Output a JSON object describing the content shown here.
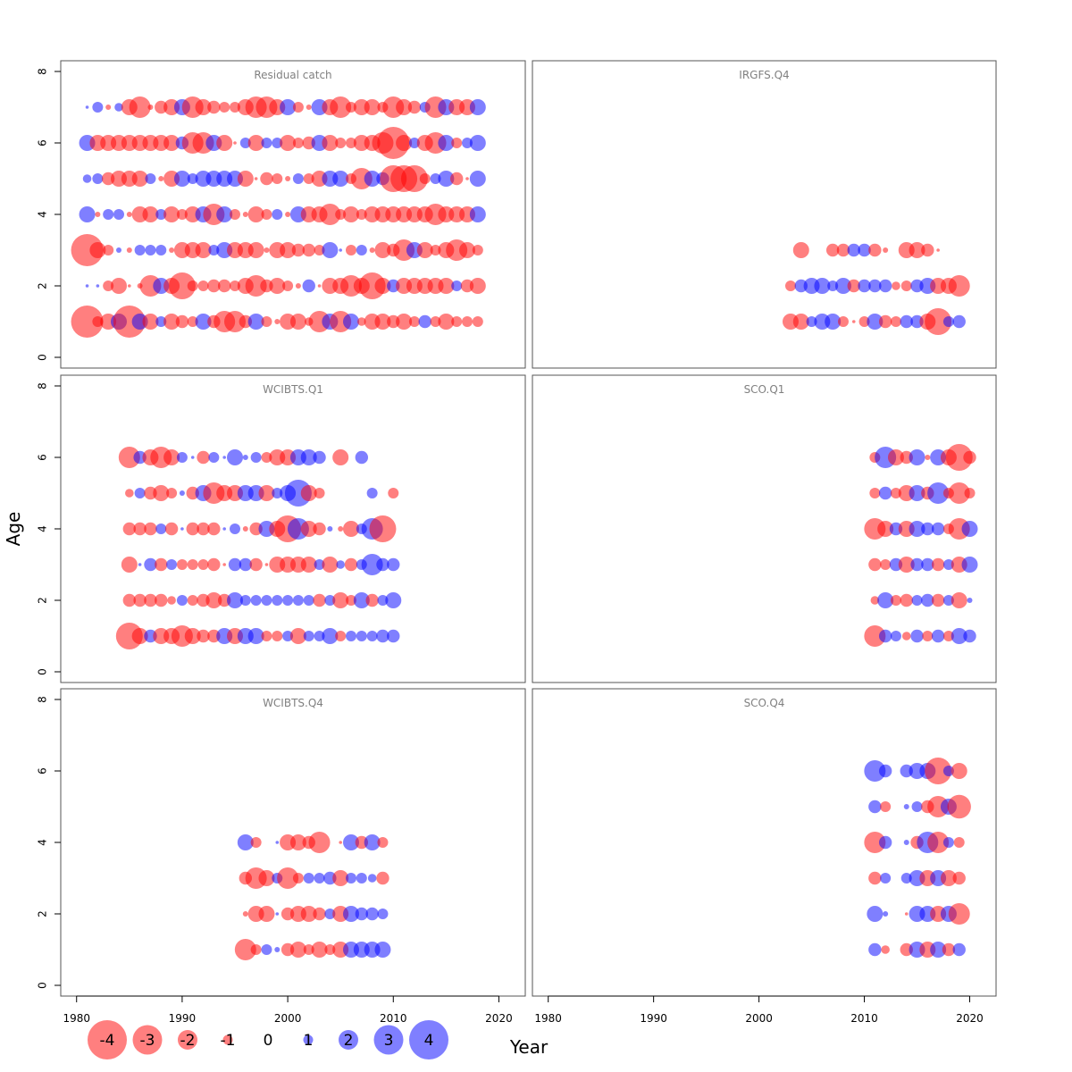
{
  "chart_data": {
    "type": "scatter",
    "subtype": "bubble-residual-panels",
    "ylabel": "Age",
    "xlabel": "Year",
    "xlim": [
      1978.5,
      2022.5
    ],
    "ylim": [
      -0.3,
      8.3
    ],
    "x_ticks": [
      1980,
      1990,
      2000,
      2010,
      2020
    ],
    "y_ticks": [
      0,
      2,
      4,
      6,
      8
    ],
    "colors": {
      "negative": "#ff0000",
      "positive": "#0000ff",
      "opacity": 0.5
    },
    "size_legend": {
      "values": [
        -4,
        -3,
        -2,
        -1,
        0,
        1,
        2,
        3,
        4
      ],
      "labels": [
        "-4",
        "-3",
        "-2",
        "-1",
        "0",
        "1",
        "2",
        "3",
        "4"
      ]
    },
    "panels": [
      {
        "title": "Residual catch",
        "years": [
          1981,
          1982,
          1983,
          1984,
          1985,
          1986,
          1987,
          1988,
          1989,
          1990,
          1991,
          1992,
          1993,
          1994,
          1995,
          1996,
          1997,
          1998,
          1999,
          2000,
          2001,
          2002,
          2003,
          2004,
          2005,
          2006,
          2007,
          2008,
          2009,
          2010,
          2011,
          2012,
          2013,
          2014,
          2015,
          2016,
          2017,
          2018
        ],
        "ages": [
          1,
          2,
          3,
          4,
          5,
          6,
          7
        ],
        "residuals": [
          [
            -3.0,
            -1.0,
            -1.5,
            1.5,
            -3.0,
            1.5,
            -1.5,
            1.0,
            -1.5,
            -1.2,
            -1.0,
            1.5,
            -1.2,
            -2.0,
            -2.0,
            -1.2,
            1.5,
            -1.0,
            -0.5,
            -1.5,
            -1.5,
            -0.8,
            -2.0,
            1.5,
            -2.0,
            1.5,
            -0.8,
            -1.5,
            -1.5,
            -1.2,
            -1.5,
            -1.0,
            1.2,
            -1.0,
            -1.5,
            -1.0,
            -1.0,
            -1.0
          ],
          [
            0.3,
            0.3,
            -1.0,
            -1.5,
            -0.3,
            -0.5,
            -2.0,
            1.5,
            -1.5,
            -2.5,
            -1.0,
            -1.0,
            -1.2,
            -1.2,
            -1.0,
            -1.5,
            -2.0,
            -1.2,
            -1.5,
            -1.0,
            -0.5,
            1.2,
            -0.3,
            -1.5,
            -1.5,
            -2.0,
            -1.5,
            -2.5,
            -1.5,
            1.2,
            -1.5,
            -1.5,
            -1.5,
            -1.5,
            -1.5,
            1.0,
            -1.2,
            -1.5
          ],
          [
            -3.0,
            -1.5,
            -1.0,
            0.5,
            -0.5,
            1.0,
            1.0,
            1.0,
            -0.5,
            -1.5,
            -1.5,
            -1.5,
            1.0,
            1.5,
            -1.5,
            -1.5,
            -1.5,
            -0.5,
            -1.5,
            -1.5,
            -1.2,
            -1.2,
            -1.0,
            1.5,
            0.3,
            -1.0,
            1.0,
            -0.5,
            -1.5,
            -1.2,
            -2.0,
            1.5,
            -1.5,
            -1.0,
            -1.5,
            -2.0,
            -1.5,
            -1.0
          ],
          [
            1.5,
            -0.5,
            1.0,
            1.0,
            -0.5,
            -1.5,
            -1.5,
            1.0,
            -1.5,
            -1.0,
            -1.5,
            1.5,
            -2.0,
            1.5,
            -1.0,
            -0.5,
            -1.5,
            -1.0,
            1.0,
            -0.5,
            1.5,
            -1.5,
            -1.5,
            -2.0,
            -1.0,
            -1.5,
            -1.0,
            -1.5,
            -1.5,
            -1.5,
            -1.5,
            -1.5,
            -1.5,
            -2.0,
            -1.5,
            -1.5,
            -1.5,
            1.5
          ],
          [
            0.8,
            1.0,
            -1.2,
            -1.5,
            -1.5,
            -1.5,
            1.0,
            -0.5,
            -1.5,
            1.5,
            1.0,
            1.5,
            1.5,
            1.5,
            1.5,
            -1.5,
            -0.3,
            -1.2,
            -1.0,
            -0.5,
            1.0,
            -1.0,
            -1.5,
            1.5,
            1.5,
            -1.0,
            -2.0,
            1.5,
            1.2,
            -2.5,
            -2.5,
            -2.5,
            -1.0,
            1.0,
            1.5,
            -1.2,
            -0.3,
            1.5
          ],
          [
            1.5,
            -1.5,
            -1.5,
            -1.5,
            -1.5,
            -1.5,
            -1.5,
            -1.5,
            -1.5,
            1.2,
            -2.0,
            -2.0,
            1.5,
            -1.5,
            -0.3,
            1.0,
            -1.5,
            1.0,
            1.0,
            -1.5,
            -1.0,
            -1.2,
            1.5,
            -1.5,
            -1.0,
            -1.0,
            -1.5,
            -1.5,
            -2.0,
            -3.0,
            -1.5,
            1.0,
            -1.5,
            -2.0,
            1.5,
            -1.0,
            1.0,
            1.5
          ],
          [
            0.3,
            1.0,
            -0.5,
            0.8,
            -1.5,
            -2.0,
            -0.5,
            -1.2,
            -1.5,
            1.5,
            -2.0,
            -1.5,
            -1.2,
            -1.0,
            -1.0,
            -1.5,
            -2.0,
            -2.0,
            -1.5,
            1.5,
            -1.0,
            -0.5,
            1.5,
            -1.5,
            -2.0,
            -1.0,
            -1.5,
            -1.5,
            -1.0,
            -2.0,
            -1.5,
            -1.2,
            1.0,
            -2.0,
            1.5,
            -1.5,
            -1.5,
            1.5
          ]
        ]
      },
      {
        "title": "IRGFS.Q4",
        "years": [
          2003,
          2004,
          2005,
          2006,
          2007,
          2008,
          2009,
          2010,
          2011,
          2012,
          2013,
          2014,
          2015,
          2016,
          2017,
          2018,
          2019
        ],
        "ages": [
          1,
          2,
          3
        ],
        "residuals": [
          [
            -1.5,
            -1.5,
            1.0,
            1.5,
            1.5,
            -1.0,
            -0.3,
            -1.0,
            1.5,
            -1.2,
            -1.0,
            1.2,
            1.2,
            -1.5,
            -2.5,
            1.0,
            1.2
          ],
          [
            -1.0,
            1.2,
            1.5,
            1.5,
            1.0,
            1.5,
            -1.2,
            1.2,
            1.2,
            1.2,
            -0.8,
            -1.0,
            1.2,
            1.5,
            -1.5,
            -1.5,
            -2.0
          ],
          [
            null,
            -1.5,
            null,
            null,
            -1.2,
            -1.2,
            1.2,
            1.2,
            -1.2,
            -0.5,
            null,
            -1.5,
            -1.5,
            -1.2,
            -0.3,
            null,
            null
          ]
        ]
      },
      {
        "title": "WCIBTS.Q1",
        "years": [
          1985,
          1986,
          1987,
          1988,
          1989,
          1990,
          1991,
          1992,
          1993,
          1994,
          1995,
          1996,
          1997,
          1998,
          1999,
          2000,
          2001,
          2002,
          2003,
          2004,
          2005,
          2006,
          2007,
          2008,
          2009,
          2010
        ],
        "ages": [
          1,
          2,
          3,
          4,
          5,
          6
        ],
        "residuals": [
          [
            -2.5,
            -1.5,
            1.2,
            -1.5,
            -1.5,
            -2.0,
            -1.5,
            -1.2,
            -1.2,
            1.5,
            -1.5,
            1.5,
            1.5,
            -1.0,
            -1.0,
            1.0,
            -1.5,
            1.0,
            1.0,
            1.5,
            -1.0,
            1.0,
            1.0,
            1.0,
            1.2,
            1.2
          ],
          [
            -1.2,
            -1.2,
            -1.2,
            -1.2,
            -0.8,
            1.0,
            -1.0,
            -1.2,
            -1.5,
            -1.2,
            1.5,
            1.0,
            1.0,
            1.0,
            1.0,
            1.0,
            1.0,
            1.0,
            -1.2,
            1.0,
            -1.5,
            -1.0,
            1.5,
            -1.2,
            1.0,
            1.5
          ],
          [
            -1.5,
            0.3,
            1.2,
            -1.2,
            1.0,
            -1.0,
            -1.0,
            -1.0,
            -1.2,
            -0.3,
            1.2,
            1.2,
            -1.2,
            -0.3,
            -1.5,
            -1.5,
            -1.5,
            -1.5,
            1.0,
            -1.5,
            0.8,
            -1.2,
            1.0,
            2.0,
            1.2,
            1.2
          ],
          [
            -1.2,
            -1.2,
            -1.2,
            1.0,
            -1.2,
            0.3,
            -1.2,
            -1.2,
            -1.2,
            0.3,
            1.0,
            -0.5,
            -1.2,
            1.5,
            -1.5,
            -2.5,
            2.0,
            -1.5,
            -1.2,
            0.5,
            -0.5,
            -1.5,
            1.0,
            2.0,
            -2.5,
            null
          ],
          [
            -0.8,
            1.0,
            -1.2,
            -1.5,
            -1.0,
            0.5,
            -1.2,
            1.5,
            -2.0,
            -1.5,
            -1.5,
            1.5,
            1.5,
            -1.5,
            1.0,
            1.5,
            2.5,
            -1.5,
            -1.0,
            null,
            null,
            null,
            null,
            1.0,
            null,
            -1.0
          ],
          [
            -2.0,
            1.2,
            -1.5,
            -2.0,
            -1.5,
            1.0,
            0.3,
            -1.2,
            1.0,
            0.3,
            1.5,
            0.5,
            1.0,
            -1.0,
            -1.5,
            -1.5,
            1.5,
            1.5,
            1.2,
            null,
            -1.5,
            null,
            1.2,
            null,
            null,
            null
          ]
        ]
      },
      {
        "title": "SCO.Q1",
        "years": [
          2011,
          2012,
          2013,
          2014,
          2015,
          2016,
          2017,
          2018,
          2019,
          2020
        ],
        "ages": [
          1,
          2,
          3,
          4,
          5,
          6
        ],
        "residuals": [
          [
            -2.0,
            1.2,
            1.0,
            -0.8,
            1.2,
            -1.0,
            1.2,
            -1.0,
            1.5,
            1.2
          ],
          [
            -0.8,
            1.5,
            -1.0,
            -1.2,
            1.0,
            1.2,
            -1.2,
            1.0,
            -1.5,
            0.5
          ],
          [
            -1.2,
            -1.0,
            1.2,
            -1.5,
            1.2,
            1.2,
            -1.2,
            1.0,
            -1.5,
            1.5
          ],
          [
            -2.0,
            -1.5,
            1.2,
            -1.5,
            1.5,
            1.2,
            1.2,
            -1.0,
            -2.0,
            1.5
          ],
          [
            -1.0,
            1.2,
            -1.0,
            -1.5,
            1.5,
            -1.2,
            2.0,
            -1.0,
            -2.0,
            -1.0
          ],
          [
            -1.0,
            2.0,
            -1.5,
            -1.2,
            1.5,
            -0.5,
            1.5,
            -1.5,
            -2.5,
            -1.2
          ]
        ]
      },
      {
        "title": "WCIBTS.Q4",
        "years": [
          1996,
          1997,
          1998,
          1999,
          2000,
          2001,
          2002,
          2003,
          2004,
          2005,
          2006,
          2007,
          2008,
          2009
        ],
        "ages": [
          1,
          2,
          3,
          4
        ],
        "residuals": [
          [
            -2.0,
            -1.0,
            1.0,
            0.5,
            -1.2,
            -1.5,
            -1.0,
            -1.5,
            -1.0,
            -1.5,
            1.5,
            1.5,
            1.5,
            1.5
          ],
          [
            -0.5,
            -1.5,
            -1.5,
            0.3,
            -1.2,
            -1.5,
            -1.5,
            -1.2,
            1.0,
            -1.5,
            1.5,
            1.2,
            1.2,
            1.0
          ],
          [
            -1.2,
            -2.0,
            -1.5,
            1.0,
            -2.0,
            -1.0,
            1.0,
            1.0,
            1.2,
            -1.5,
            1.0,
            1.0,
            0.8,
            -1.2
          ],
          [
            1.5,
            -1.0,
            null,
            0.3,
            -1.5,
            -1.5,
            -1.2,
            -2.0,
            null,
            -0.3,
            1.5,
            -1.2,
            1.5,
            -1.0
          ]
        ]
      },
      {
        "title": "SCO.Q4",
        "years": [
          2011,
          2012,
          2013,
          2014,
          2015,
          2016,
          2017,
          2018,
          2019
        ],
        "ages": [
          1,
          2,
          3,
          4,
          5,
          6
        ],
        "residuals": [
          [
            1.2,
            -0.8,
            null,
            -1.2,
            1.5,
            -1.5,
            1.5,
            -1.2,
            1.2
          ],
          [
            1.5,
            0.5,
            null,
            -0.3,
            1.5,
            1.5,
            -1.5,
            1.5,
            -2.0
          ],
          [
            -1.2,
            1.0,
            null,
            1.0,
            1.5,
            -1.5,
            1.5,
            -1.5,
            -1.2
          ],
          [
            -2.0,
            1.2,
            null,
            0.5,
            -1.2,
            2.0,
            -2.0,
            1.0,
            -1.0
          ],
          [
            1.2,
            -1.0,
            null,
            0.5,
            1.0,
            -1.2,
            -2.0,
            1.5,
            -2.2
          ],
          [
            2.0,
            1.2,
            null,
            1.2,
            1.5,
            1.5,
            -2.5,
            1.0,
            -1.5
          ]
        ]
      }
    ]
  }
}
